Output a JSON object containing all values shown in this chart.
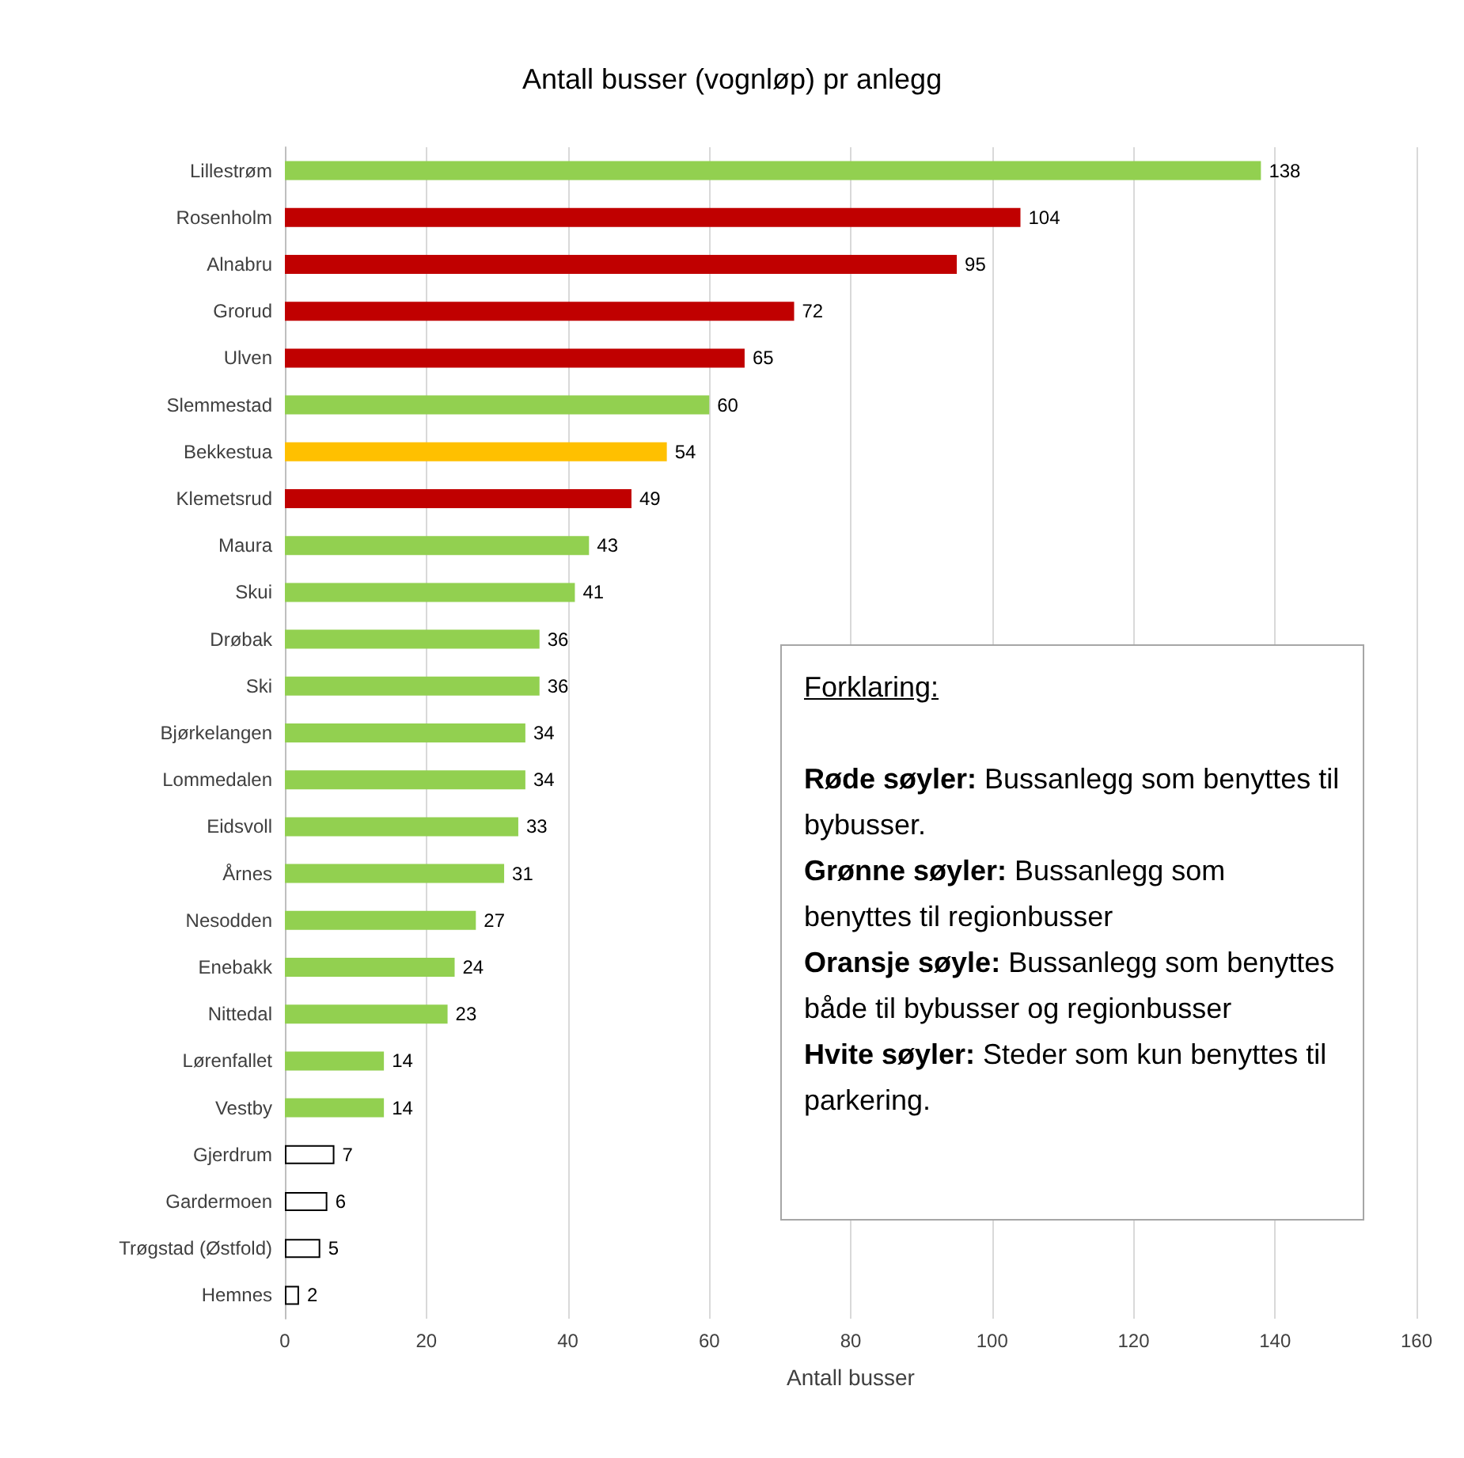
{
  "chart_data": {
    "type": "bar",
    "orientation": "horizontal",
    "title": "Antall busser (vognløp) pr anlegg",
    "xlabel": "Antall busser",
    "categories": [
      "Lillestrøm",
      "Rosenholm",
      "Alnabru",
      "Grorud",
      "Ulven",
      "Slemmestad",
      "Bekkestua",
      "Klemetsrud",
      "Maura",
      "Skui",
      "Drøbak",
      "Ski",
      "Bjørkelangen",
      "Lommedalen",
      "Eidsvoll",
      "Årnes",
      "Nesodden",
      "Enebakk",
      "Nittedal",
      "Lørenfallet",
      "Vestby",
      "Gjerdrum",
      "Gardermoen",
      "Trøgstad (Østfold)",
      "Hemnes"
    ],
    "values": [
      138,
      104,
      95,
      72,
      65,
      60,
      54,
      49,
      43,
      41,
      36,
      36,
      34,
      34,
      33,
      31,
      27,
      24,
      23,
      14,
      14,
      7,
      6,
      5,
      2
    ],
    "colors": [
      "#92d050",
      "#c00000",
      "#c00000",
      "#c00000",
      "#c00000",
      "#92d050",
      "#ffc000",
      "#c00000",
      "#92d050",
      "#92d050",
      "#92d050",
      "#92d050",
      "#92d050",
      "#92d050",
      "#92d050",
      "#92d050",
      "#92d050",
      "#92d050",
      "#92d050",
      "#92d050",
      "#92d050",
      "#ffffff",
      "#ffffff",
      "#ffffff",
      "#ffffff"
    ],
    "xlim": [
      0,
      160
    ],
    "xticks": [
      0,
      20,
      40,
      60,
      80,
      100,
      120,
      140,
      160
    ],
    "grid": "x",
    "data_labels": true,
    "annotations": [
      "Forklaring:",
      "Røde søyler: Bussanlegg som benyttes til bybusser.",
      "Grønne søyler: Bussanlegg som benyttes til regionbusser",
      "Oransje søyle: Bussanlegg som benyttes både til bybusser og regionbusser",
      "Hvite søyler: Steder som kun benyttes til parkering."
    ]
  }
}
